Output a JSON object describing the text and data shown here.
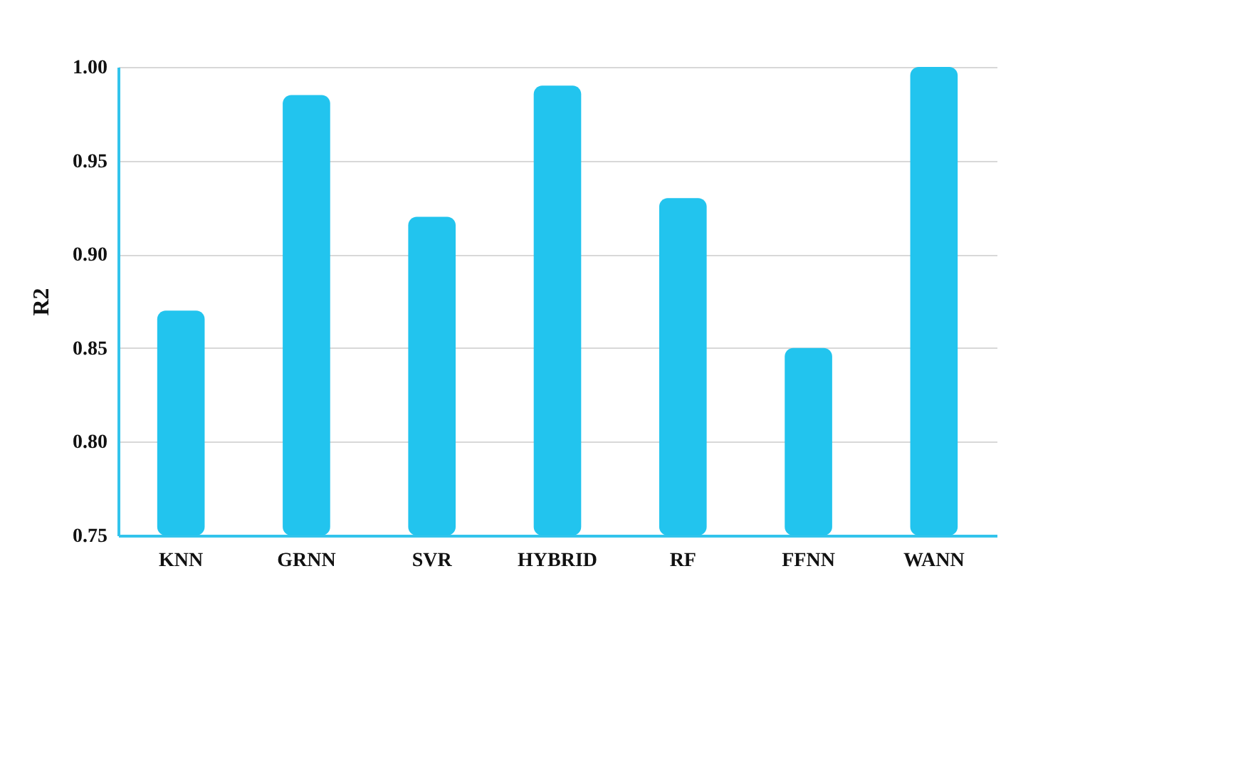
{
  "chart_data": {
    "type": "bar",
    "ylabel": "R2",
    "categories": [
      "KNN",
      "GRNN",
      "SVR",
      "HYBRID",
      "RF",
      "FFNN",
      "WANN"
    ],
    "values": [
      0.87,
      0.985,
      0.92,
      0.99,
      0.93,
      0.85,
      1.0
    ],
    "color": "#22c4ee",
    "ylim": [
      0.75,
      1.0
    ],
    "yticks": [
      0.75,
      {
        "value": 0.8,
        "label": "0.80"
      },
      0.85,
      {
        "value": 0.9,
        "label": "0.90"
      },
      0.95,
      {
        "value": 1,
        "label": "1.00"
      }
    ],
    "grid": "y"
  }
}
